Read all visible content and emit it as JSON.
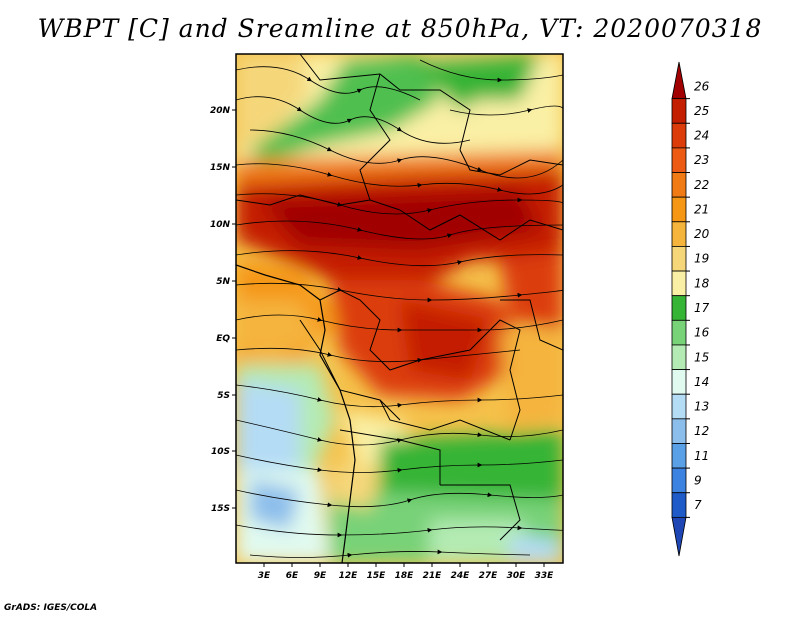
{
  "title": "WBPT [C] and Sreamline at 850hPa, VT: 2020070318",
  "footer": "GrADS: IGES/COLA",
  "map": {
    "variable": "WBPT",
    "units": "C",
    "level": "850hPa",
    "valid_time": "2020070318",
    "lat_ticks": [
      "20N",
      "15N",
      "10N",
      "5N",
      "EQ",
      "5S",
      "10S",
      "15S"
    ],
    "lat_values": [
      20,
      15,
      10,
      5,
      0,
      -5,
      -10,
      -15
    ],
    "lon_ticks": [
      "3E",
      "6E",
      "9E",
      "12E",
      "15E",
      "18E",
      "21E",
      "24E",
      "27E",
      "30E",
      "33E"
    ],
    "lon_values": [
      3,
      6,
      9,
      12,
      15,
      18,
      21,
      24,
      27,
      30,
      33
    ],
    "lat_range": [
      -20,
      24.5
    ],
    "lon_range": [
      0.5,
      35
    ]
  },
  "colorbar": {
    "labels": [
      "26",
      "25",
      "24",
      "23",
      "22",
      "21",
      "20",
      "19",
      "18",
      "17",
      "16",
      "15",
      "14",
      "13",
      "12",
      "11",
      "9",
      "7"
    ],
    "colors": [
      "#a00000",
      "#c41e00",
      "#dc3c0a",
      "#ec5a14",
      "#f07a14",
      "#f59614",
      "#f5b43c",
      "#f5d77a",
      "#faf0a5",
      "#36b436",
      "#78d278",
      "#b4ebb4",
      "#e1faf0",
      "#b4dcf5",
      "#8cbeeb",
      "#5aa0e6",
      "#3c82e1",
      "#1e5ac8",
      "#1e46b4"
    ]
  },
  "colors": {
    "hot": "#c41e00",
    "warm": "#f5b43c",
    "cool_green": "#36b436",
    "cold_blue": "#8cbeeb"
  }
}
